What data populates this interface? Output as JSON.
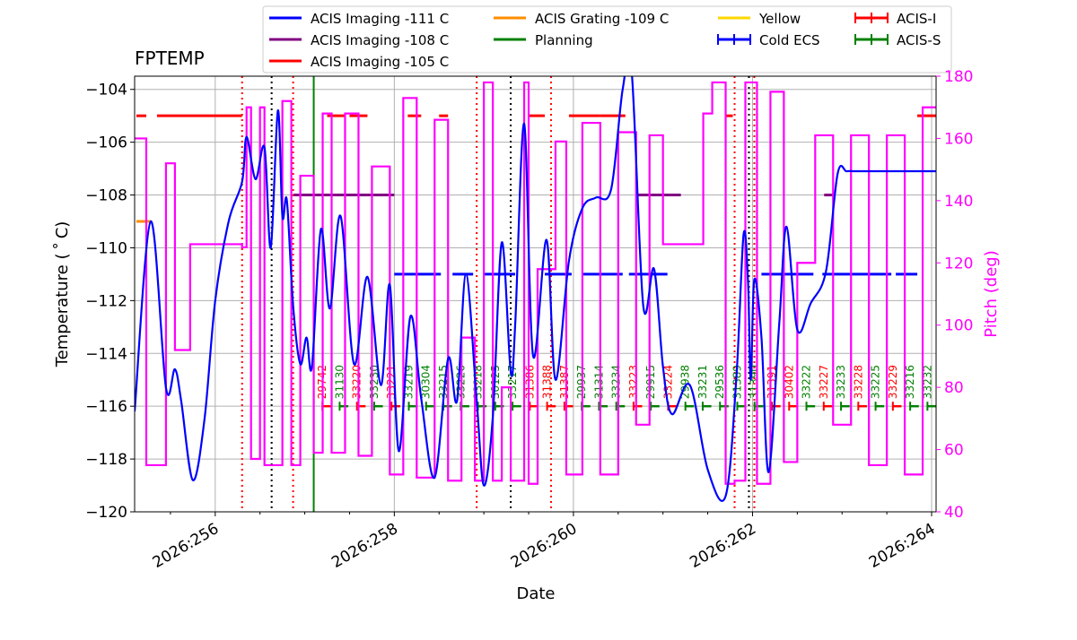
{
  "chart_data": {
    "type": "line",
    "title": "FPTEMP",
    "xlabel": "Date",
    "ylabel": "Temperature ($^\\circ$C)",
    "ylabel_display": "Temperature ( ˚ C)",
    "y2label": "Pitch (deg)",
    "x_ticks": [
      "2026:256",
      "2026:258",
      "2026:260",
      "2026:262",
      "2026:264"
    ],
    "xlim": [
      255.1,
      264.05
    ],
    "ylim": [
      -120,
      -103.5
    ],
    "y_ticks": [
      -104,
      -106,
      -108,
      -110,
      -112,
      -114,
      -116,
      -118,
      -120
    ],
    "y2lim": [
      40,
      180
    ],
    "y2_ticks": [
      40,
      60,
      80,
      100,
      120,
      140,
      160,
      180
    ],
    "grid": true,
    "legend_position": "top",
    "colors": {
      "acis_111": "#0000ff",
      "acis_108": "#800080",
      "acis_105": "#ff0000",
      "acis_109": "#ff8c00",
      "planning": "#008000",
      "yellow": "#ffd700",
      "pitch": "#ff00ff",
      "acis_i": "#ff0000",
      "acis_s": "#008000"
    },
    "legend": [
      {
        "label": "ACIS Imaging -111 C",
        "color": "#0000ff",
        "marker": false
      },
      {
        "label": "ACIS Imaging -108 C",
        "color": "#800080",
        "marker": false
      },
      {
        "label": "ACIS Imaging -105 C",
        "color": "#ff0000",
        "marker": false
      },
      {
        "label": "ACIS Grating -109 C",
        "color": "#ff8c00",
        "marker": false
      },
      {
        "label": "Planning",
        "color": "#008000",
        "marker": false
      },
      {
        "label": "Yellow",
        "color": "#ffd700",
        "marker": false
      },
      {
        "label": "Cold ECS",
        "color": "#0000ff",
        "marker": true
      },
      {
        "label": "ACIS-I",
        "color": "#ff0000",
        "marker": true
      },
      {
        "label": "ACIS-S",
        "color": "#008000",
        "marker": true
      }
    ],
    "fptemp_series": {
      "name": "FPTEMP",
      "x": [
        255.1,
        255.28,
        255.45,
        255.55,
        255.62,
        255.75,
        255.88,
        256.0,
        256.15,
        256.3,
        256.35,
        256.45,
        256.55,
        256.62,
        256.7,
        256.75,
        256.8,
        256.87,
        256.95,
        257.02,
        257.08,
        257.18,
        257.28,
        257.4,
        257.55,
        257.7,
        257.85,
        257.95,
        258.05,
        258.18,
        258.3,
        258.45,
        258.6,
        258.7,
        258.8,
        258.92,
        259.0,
        259.1,
        259.2,
        259.3,
        259.35,
        259.45,
        259.55,
        259.7,
        259.8,
        259.95,
        260.1,
        260.25,
        260.42,
        260.55,
        260.65,
        260.78,
        260.9,
        261.0,
        261.1,
        261.3,
        261.5,
        261.7,
        261.82,
        261.9,
        261.95,
        261.98,
        262.02,
        262.1,
        262.18,
        262.3,
        262.38,
        262.5,
        262.65,
        262.82,
        262.95,
        263.05,
        263.15,
        263.35,
        263.5,
        263.6,
        263.7,
        263.85,
        264.0,
        264.05
      ],
      "y": [
        -116.2,
        -109.0,
        -115.3,
        -114.6,
        -115.8,
        -118.8,
        -116.5,
        -112.0,
        -109.0,
        -107.5,
        -105.8,
        -107.4,
        -106.2,
        -110.0,
        -104.8,
        -108.8,
        -108.2,
        -112.2,
        -114.4,
        -113.4,
        -114.5,
        -109.3,
        -112.3,
        -108.8,
        -114.4,
        -111.1,
        -115.2,
        -111.4,
        -117.7,
        -112.6,
        -115.7,
        -118.7,
        -114.2,
        -115.8,
        -111.0,
        -115.8,
        -119.0,
        -116.4,
        -109.8,
        -114.7,
        -112.9,
        -105.3,
        -114.1,
        -109.7,
        -115.0,
        -110.5,
        -108.5,
        -108.1,
        -107.8,
        -104.0,
        -103.3,
        -112.2,
        -110.8,
        -114.5,
        -116.3,
        -115.2,
        -118.4,
        -119.4,
        -114.9,
        -109.5,
        -111.3,
        -115.0,
        -111.2,
        -113.4,
        -118.5,
        -112.8,
        -109.2,
        -113.1,
        -112.1,
        -110.9,
        -107.2,
        -107.1,
        -107.1,
        -107.1,
        -107.1,
        -107.1,
        -107.1,
        -107.1,
        -107.1,
        -107.1
      ]
    },
    "pitch_series": {
      "name": "Pitch",
      "x": [
        255.1,
        255.2,
        255.23,
        255.4,
        255.45,
        255.5,
        255.55,
        255.7,
        255.72,
        256.3,
        256.35,
        256.4,
        256.5,
        256.55,
        256.62,
        256.75,
        256.85,
        256.95,
        257.1,
        257.2,
        257.3,
        257.45,
        257.6,
        257.75,
        257.95,
        258.1,
        258.25,
        258.45,
        258.6,
        258.75,
        258.9,
        259.0,
        259.1,
        259.2,
        259.3,
        259.45,
        259.5,
        259.6,
        259.8,
        259.92,
        260.1,
        260.3,
        260.5,
        260.7,
        260.85,
        261.0,
        261.2,
        261.45,
        261.55,
        261.7,
        261.8,
        261.92,
        262.05,
        262.2,
        262.35,
        262.5,
        262.7,
        262.9,
        263.1,
        263.3,
        263.5,
        263.7,
        263.9,
        264.05
      ],
      "y": [
        160,
        160,
        55,
        55,
        152,
        152,
        92,
        92,
        126,
        125,
        170,
        57,
        170,
        55,
        55,
        172,
        55,
        148,
        59,
        168,
        59,
        168,
        58,
        151,
        52,
        173,
        51,
        166,
        50,
        96,
        50,
        178,
        50,
        80,
        50,
        178,
        49,
        118,
        159,
        52,
        165,
        52,
        162,
        68,
        161,
        126,
        126,
        168,
        178,
        49,
        50,
        178,
        49,
        175,
        56,
        120,
        161,
        68,
        161,
        55,
        161,
        52,
        170,
        170
      ]
    },
    "planning_limits": [
      {
        "label": "ACIS Imaging -111 C",
        "value": -111
      },
      {
        "label": "ACIS Imaging -108 C",
        "value": -108
      },
      {
        "label": "ACIS Imaging -105 C",
        "value": -105
      },
      {
        "label": "ACIS Grating -109 C",
        "value": -109
      }
    ],
    "obsids": [
      {
        "label": "29742",
        "color": "#ff0000"
      },
      {
        "label": "31130",
        "color": "#008000"
      },
      {
        "label": "33220",
        "color": "#ff0000"
      },
      {
        "label": "33230",
        "color": "#008000"
      },
      {
        "label": "33221",
        "color": "#ff0000"
      },
      {
        "label": "33219",
        "color": "#008000"
      },
      {
        "label": "30304",
        "color": "#008000"
      },
      {
        "label": "33215",
        "color": "#008000"
      },
      {
        "label": "33226",
        "color": "#008000"
      },
      {
        "label": "33218",
        "color": "#008000"
      },
      {
        "label": "30125",
        "color": "#008000"
      },
      {
        "label": "33217",
        "color": "#008000"
      },
      {
        "label": "31386",
        "color": "#ff0000"
      },
      {
        "label": "31388",
        "color": "#ff0000"
      },
      {
        "label": "31387",
        "color": "#ff0000"
      },
      {
        "label": "29937",
        "color": "#008000"
      },
      {
        "label": "31314",
        "color": "#008000"
      },
      {
        "label": "33234",
        "color": "#008000"
      },
      {
        "label": "33223",
        "color": "#ff0000"
      },
      {
        "label": "29915",
        "color": "#008000"
      },
      {
        "label": "33224",
        "color": "#ff0000"
      },
      {
        "label": "29938",
        "color": "#008000"
      },
      {
        "label": "33231",
        "color": "#008000"
      },
      {
        "label": "29536",
        "color": "#008000"
      },
      {
        "label": "31389",
        "color": "#008000"
      },
      {
        "label": "31390",
        "color": "#008000"
      },
      {
        "label": "31391",
        "color": "#ff0000"
      },
      {
        "label": "30402",
        "color": "#ff0000"
      },
      {
        "label": "33222",
        "color": "#008000"
      },
      {
        "label": "33227",
        "color": "#ff0000"
      },
      {
        "label": "33233",
        "color": "#008000"
      },
      {
        "label": "33228",
        "color": "#ff0000"
      },
      {
        "label": "33225",
        "color": "#008000"
      },
      {
        "label": "33229",
        "color": "#ff0000"
      },
      {
        "label": "33216",
        "color": "#008000"
      },
      {
        "label": "33232",
        "color": "#008000"
      }
    ]
  }
}
